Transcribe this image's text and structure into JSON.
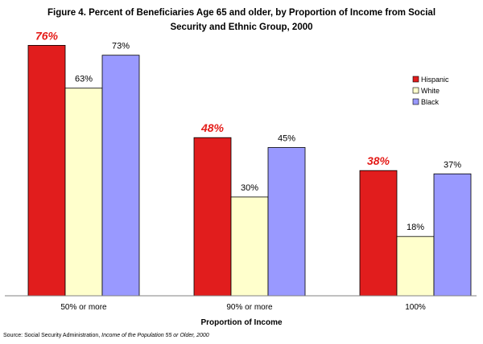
{
  "chart_data": {
    "type": "bar",
    "title_lines": [
      "Figure 4. Percent of Beneficiaries Age 65 and older, by Proportion of Income from Social",
      "Security and Ethnic Group, 2000"
    ],
    "xlabel": "Proportion of Income",
    "ylabel": "",
    "categories": [
      "50% or more",
      "90% or more",
      "100%"
    ],
    "series": [
      {
        "name": "Hispanic",
        "color": "#e11d1d",
        "values": [
          76,
          48,
          38
        ],
        "labels": [
          "76%",
          "48%",
          "38%"
        ]
      },
      {
        "name": "White",
        "color": "#ffffcc",
        "values": [
          63,
          30,
          18
        ],
        "labels": [
          "63%",
          "30%",
          "18%"
        ]
      },
      {
        "name": "Black",
        "color": "#9999ff",
        "values": [
          73,
          45,
          37
        ],
        "labels": [
          "73%",
          "45%",
          "37%"
        ]
      }
    ],
    "ylim": [
      0,
      80
    ],
    "grid": false,
    "legend_position": "top-right"
  },
  "source": {
    "prefix": "Source: Social Security Administration, ",
    "italic": "Income of the Population 55 or Older, 2000"
  }
}
